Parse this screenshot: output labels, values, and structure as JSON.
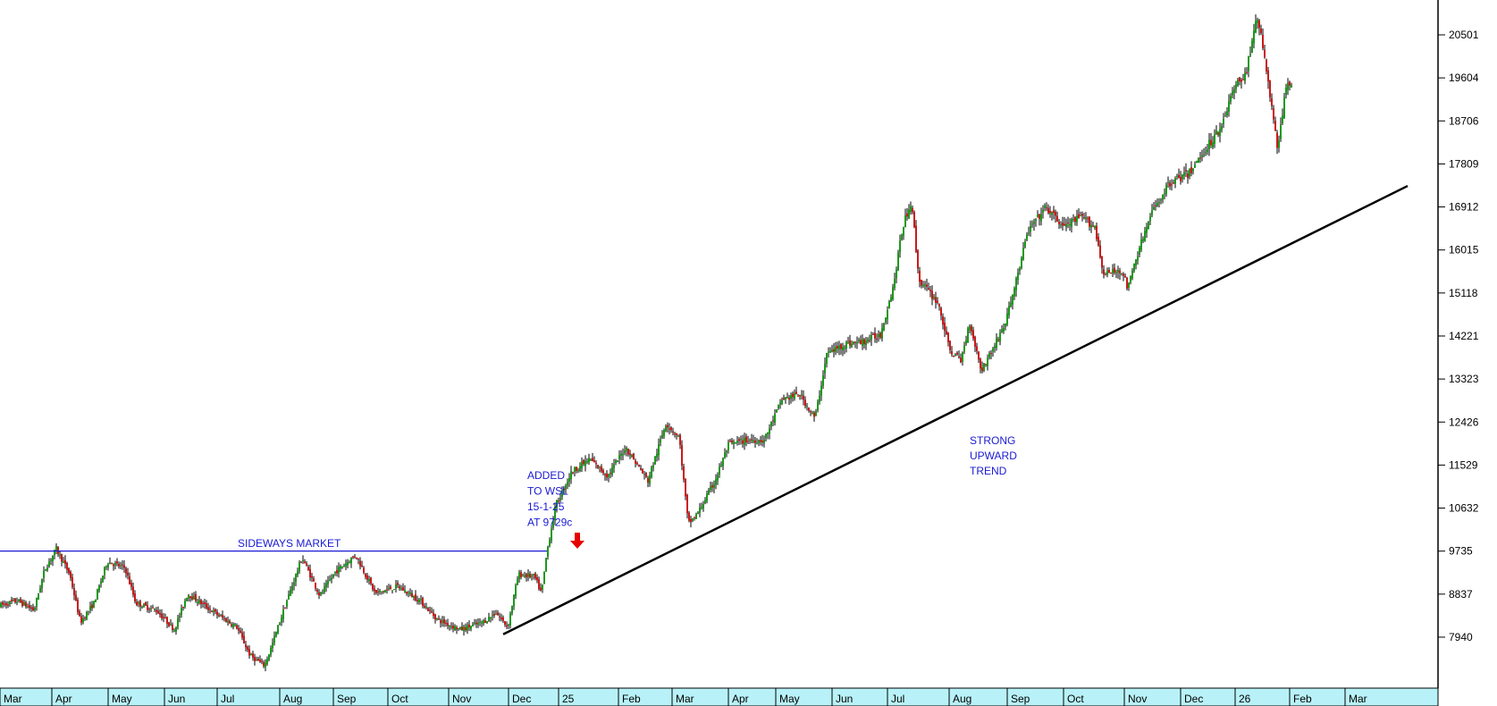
{
  "chart_data": {
    "type": "candlestick",
    "colors": {
      "up": "#1a9a1a",
      "down": "#cc1a1a",
      "wick": "#000000",
      "trendline": "#000000",
      "resistance": "#1a1ad4",
      "annotation": "#1a1ad4",
      "arrow": "#e60000",
      "axis_band": "#b8f2f8",
      "background": "#ffffff"
    },
    "y_axis": {
      "position": "right",
      "ticks": [
        "20501",
        "19604",
        "18706",
        "17809",
        "16912",
        "16015",
        "15118",
        "14221",
        "13323",
        "12426",
        "11529",
        "10632",
        "9735",
        "8837",
        "7940"
      ],
      "range": [
        7000,
        21300
      ]
    },
    "x_axis": {
      "labels": [
        "Mar",
        "Apr",
        "May",
        "Jun",
        "Jul",
        "Aug",
        "Sep",
        "Oct",
        "Nov",
        "Dec",
        "25",
        "Feb",
        "Mar",
        "Apr",
        "May",
        "Jun",
        "Jul",
        "Aug",
        "Sep",
        "Oct",
        "Nov",
        "Dec",
        "26",
        "Feb",
        "Mar"
      ]
    },
    "price_path": [
      {
        "x": 0,
        "y": 8600
      },
      {
        "x": 20,
        "y": 8700
      },
      {
        "x": 38,
        "y": 8500
      },
      {
        "x": 50,
        "y": 9350
      },
      {
        "x": 63,
        "y": 9780
      },
      {
        "x": 78,
        "y": 9250
      },
      {
        "x": 90,
        "y": 8250
      },
      {
        "x": 105,
        "y": 8650
      },
      {
        "x": 120,
        "y": 9520
      },
      {
        "x": 140,
        "y": 9380
      },
      {
        "x": 152,
        "y": 8650
      },
      {
        "x": 175,
        "y": 8500
      },
      {
        "x": 195,
        "y": 8100
      },
      {
        "x": 210,
        "y": 8850
      },
      {
        "x": 240,
        "y": 8450
      },
      {
        "x": 265,
        "y": 8150
      },
      {
        "x": 280,
        "y": 7550
      },
      {
        "x": 296,
        "y": 7350
      },
      {
        "x": 302,
        "y": 7650
      },
      {
        "x": 320,
        "y": 8650
      },
      {
        "x": 338,
        "y": 9600
      },
      {
        "x": 358,
        "y": 8800
      },
      {
        "x": 375,
        "y": 9300
      },
      {
        "x": 398,
        "y": 9650
      },
      {
        "x": 420,
        "y": 8850
      },
      {
        "x": 445,
        "y": 9000
      },
      {
        "x": 470,
        "y": 8700
      },
      {
        "x": 490,
        "y": 8300
      },
      {
        "x": 515,
        "y": 8100
      },
      {
        "x": 540,
        "y": 8250
      },
      {
        "x": 555,
        "y": 8450
      },
      {
        "x": 568,
        "y": 8150
      },
      {
        "x": 580,
        "y": 9250
      },
      {
        "x": 598,
        "y": 9200
      },
      {
        "x": 606,
        "y": 8850
      },
      {
        "x": 612,
        "y": 9729
      },
      {
        "x": 622,
        "y": 10700
      },
      {
        "x": 640,
        "y": 11400
      },
      {
        "x": 660,
        "y": 11650
      },
      {
        "x": 680,
        "y": 11300
      },
      {
        "x": 700,
        "y": 11900
      },
      {
        "x": 725,
        "y": 11200
      },
      {
        "x": 745,
        "y": 12400
      },
      {
        "x": 760,
        "y": 12100
      },
      {
        "x": 770,
        "y": 10300
      },
      {
        "x": 780,
        "y": 10500
      },
      {
        "x": 800,
        "y": 11200
      },
      {
        "x": 815,
        "y": 11950
      },
      {
        "x": 835,
        "y": 12050
      },
      {
        "x": 855,
        "y": 12050
      },
      {
        "x": 875,
        "y": 12900
      },
      {
        "x": 895,
        "y": 13000
      },
      {
        "x": 912,
        "y": 12500
      },
      {
        "x": 925,
        "y": 13850
      },
      {
        "x": 945,
        "y": 14050
      },
      {
        "x": 965,
        "y": 14100
      },
      {
        "x": 985,
        "y": 14250
      },
      {
        "x": 1000,
        "y": 15300
      },
      {
        "x": 1010,
        "y": 16500
      },
      {
        "x": 1020,
        "y": 17050
      },
      {
        "x": 1028,
        "y": 15400
      },
      {
        "x": 1050,
        "y": 14900
      },
      {
        "x": 1062,
        "y": 13950
      },
      {
        "x": 1075,
        "y": 13700
      },
      {
        "x": 1085,
        "y": 14500
      },
      {
        "x": 1098,
        "y": 13500
      },
      {
        "x": 1112,
        "y": 14000
      },
      {
        "x": 1125,
        "y": 14500
      },
      {
        "x": 1140,
        "y": 15600
      },
      {
        "x": 1150,
        "y": 16400
      },
      {
        "x": 1170,
        "y": 16900
      },
      {
        "x": 1190,
        "y": 16500
      },
      {
        "x": 1210,
        "y": 16700
      },
      {
        "x": 1225,
        "y": 16500
      },
      {
        "x": 1235,
        "y": 15500
      },
      {
        "x": 1255,
        "y": 15600
      },
      {
        "x": 1262,
        "y": 15200
      },
      {
        "x": 1272,
        "y": 15900
      },
      {
        "x": 1290,
        "y": 16850
      },
      {
        "x": 1310,
        "y": 17450
      },
      {
        "x": 1330,
        "y": 17600
      },
      {
        "x": 1350,
        "y": 18150
      },
      {
        "x": 1365,
        "y": 18550
      },
      {
        "x": 1380,
        "y": 19350
      },
      {
        "x": 1395,
        "y": 19750
      },
      {
        "x": 1405,
        "y": 20850
      },
      {
        "x": 1412,
        "y": 20400
      },
      {
        "x": 1420,
        "y": 19350
      },
      {
        "x": 1430,
        "y": 18100
      },
      {
        "x": 1440,
        "y": 19600
      },
      {
        "x": 1446,
        "y": 19450
      }
    ],
    "resistance_line": {
      "x_start": 0,
      "x_end": 612,
      "value": 9735
    },
    "trendline": {
      "x_start": 563,
      "x_end": 1575,
      "value_start": 8000,
      "value_end": 17350
    },
    "annotations": [
      {
        "text": "SIDEWAYS MARKET"
      },
      {
        "lines": [
          "ADDED",
          "TO WSL",
          "15-1-25",
          "AT 9729c"
        ]
      },
      {
        "lines": [
          "STRONG",
          "UPWARD",
          "TREND"
        ]
      }
    ]
  }
}
